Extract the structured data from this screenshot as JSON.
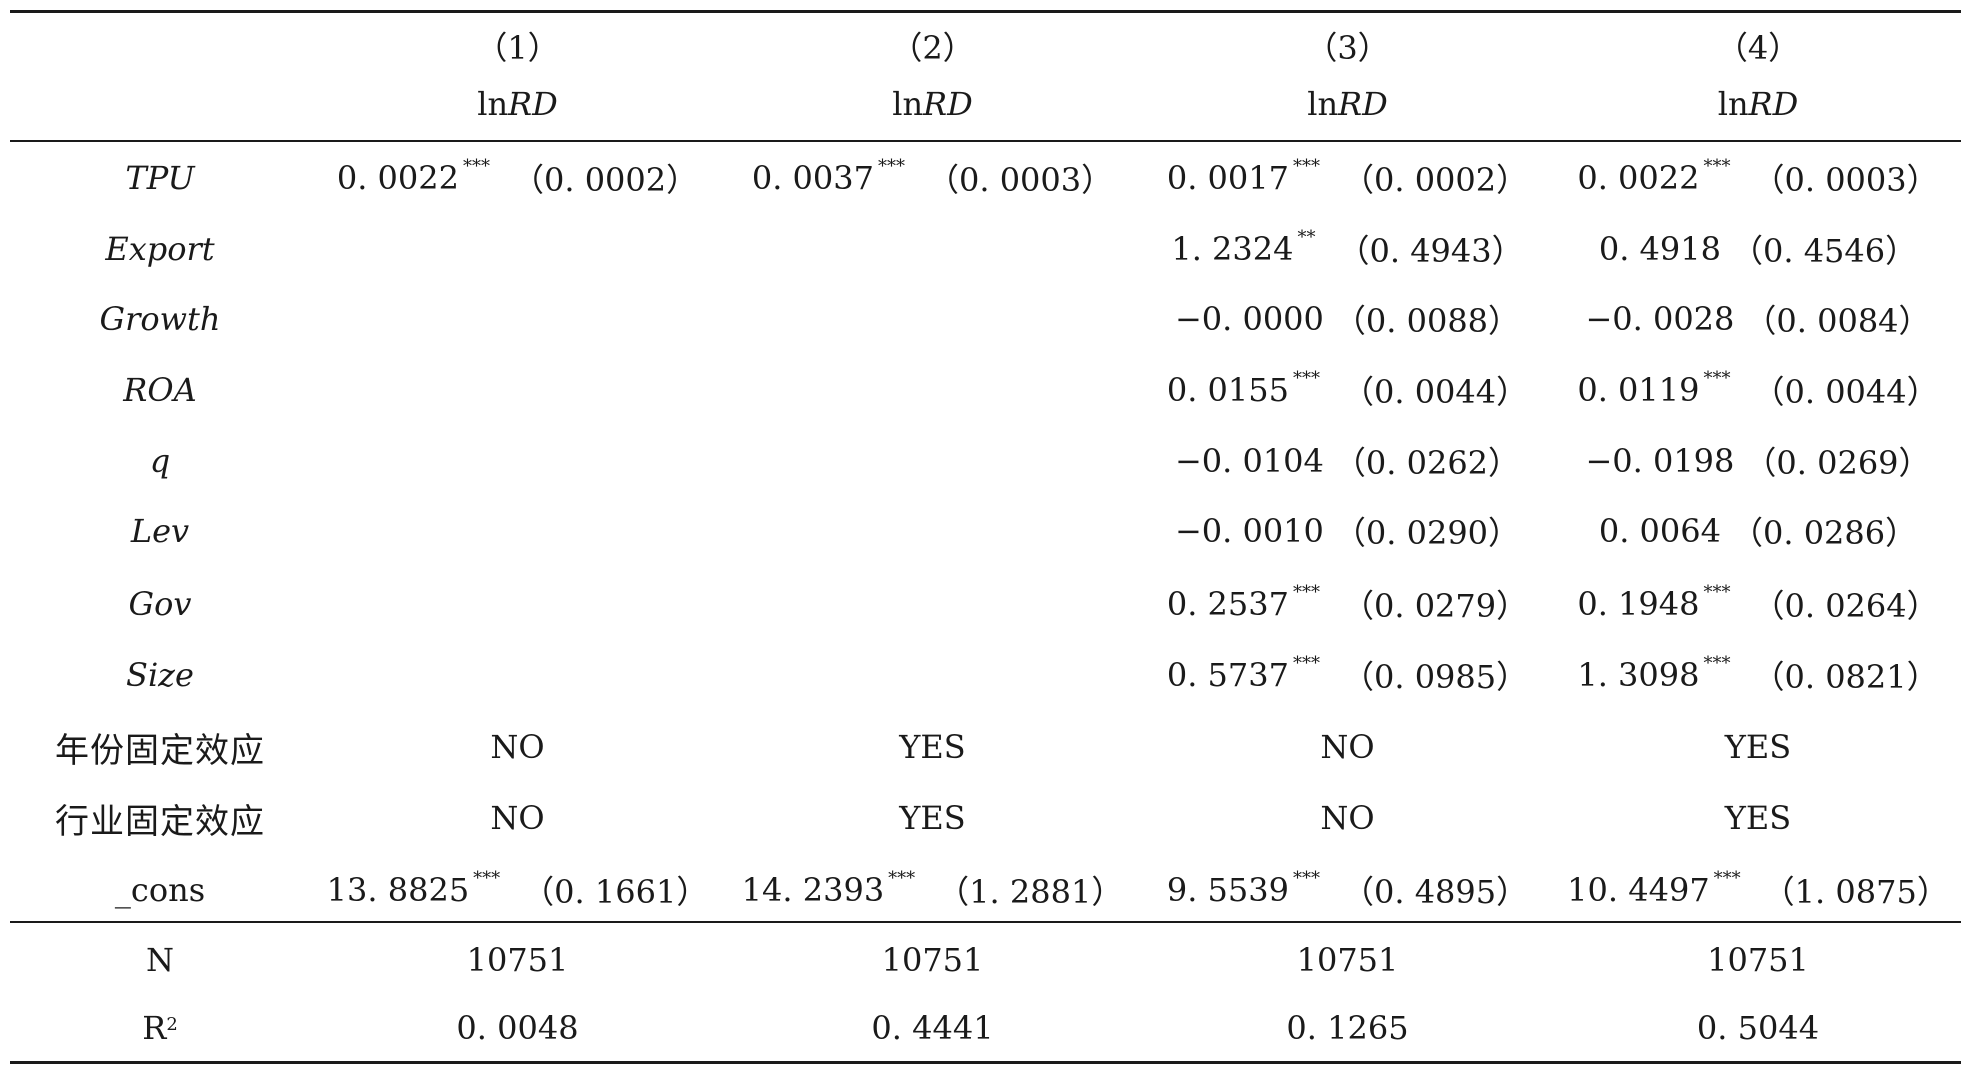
{
  "header": {
    "columns": [
      {
        "num": "（1）",
        "dv_prefix": "ln",
        "dv_var": "RD"
      },
      {
        "num": "（2）",
        "dv_prefix": "ln",
        "dv_var": "RD"
      },
      {
        "num": "（3）",
        "dv_prefix": "ln",
        "dv_var": "RD"
      },
      {
        "num": "（4）",
        "dv_prefix": "ln",
        "dv_var": "RD"
      }
    ]
  },
  "rows": [
    {
      "label": "TPU",
      "cells": [
        {
          "coef": "0. 0022",
          "stars": "***",
          "se": "（0. 0002）"
        },
        {
          "coef": "0. 0037",
          "stars": "***",
          "se": "（0. 0003）"
        },
        {
          "coef": "0. 0017",
          "stars": "***",
          "se": "（0. 0002）"
        },
        {
          "coef": "0. 0022",
          "stars": "***",
          "se": "（0. 0003）"
        }
      ]
    },
    {
      "label": "Export",
      "cells": [
        {
          "coef": "",
          "stars": "",
          "se": ""
        },
        {
          "coef": "",
          "stars": "",
          "se": ""
        },
        {
          "coef": "1. 2324",
          "stars": "**",
          "se": "（0. 4943）"
        },
        {
          "coef": "0. 4918",
          "stars": "",
          "se": "（0. 4546）"
        }
      ]
    },
    {
      "label": "Growth",
      "cells": [
        {
          "coef": "",
          "stars": "",
          "se": ""
        },
        {
          "coef": "",
          "stars": "",
          "se": ""
        },
        {
          "coef": "−0. 0000",
          "stars": "",
          "se": "（0. 0088）"
        },
        {
          "coef": "−0. 0028",
          "stars": "",
          "se": "（0. 0084）"
        }
      ]
    },
    {
      "label": "ROA",
      "cells": [
        {
          "coef": "",
          "stars": "",
          "se": ""
        },
        {
          "coef": "",
          "stars": "",
          "se": ""
        },
        {
          "coef": "0. 0155",
          "stars": "***",
          "se": "（0. 0044）"
        },
        {
          "coef": "0. 0119",
          "stars": "***",
          "se": "（0. 0044）"
        }
      ]
    },
    {
      "label": "q",
      "cells": [
        {
          "coef": "",
          "stars": "",
          "se": ""
        },
        {
          "coef": "",
          "stars": "",
          "se": ""
        },
        {
          "coef": "−0. 0104",
          "stars": "",
          "se": "（0. 0262）"
        },
        {
          "coef": "−0. 0198",
          "stars": "",
          "se": "（0. 0269）"
        }
      ]
    },
    {
      "label": "Lev",
      "cells": [
        {
          "coef": "",
          "stars": "",
          "se": ""
        },
        {
          "coef": "",
          "stars": "",
          "se": ""
        },
        {
          "coef": "−0. 0010",
          "stars": "",
          "se": "（0. 0290）"
        },
        {
          "coef": "0. 0064",
          "stars": "",
          "se": "（0. 0286）"
        }
      ]
    },
    {
      "label": "Gov",
      "cells": [
        {
          "coef": "",
          "stars": "",
          "se": ""
        },
        {
          "coef": "",
          "stars": "",
          "se": ""
        },
        {
          "coef": "0. 2537",
          "stars": "***",
          "se": "（0. 0279）"
        },
        {
          "coef": "0. 1948",
          "stars": "***",
          "se": "（0. 0264）"
        }
      ]
    },
    {
      "label": "Size",
      "cells": [
        {
          "coef": "",
          "stars": "",
          "se": ""
        },
        {
          "coef": "",
          "stars": "",
          "se": ""
        },
        {
          "coef": "0. 5737",
          "stars": "***",
          "se": "（0. 0985）"
        },
        {
          "coef": "1. 3098",
          "stars": "***",
          "se": "（0. 0821）"
        }
      ]
    }
  ],
  "fixed_effects": [
    {
      "label": "年份固定效应",
      "values": [
        "NO",
        "YES",
        "NO",
        "YES"
      ]
    },
    {
      "label": "行业固定效应",
      "values": [
        "NO",
        "YES",
        "NO",
        "YES"
      ]
    }
  ],
  "cons": {
    "label": "_cons",
    "cells": [
      {
        "coef": "13. 8825",
        "stars": "***",
        "se": "（0. 1661）"
      },
      {
        "coef": "14. 2393",
        "stars": "***",
        "se": "（1. 2881）"
      },
      {
        "coef": "9. 5539",
        "stars": "***",
        "se": "（0. 4895）"
      },
      {
        "coef": "10. 4497",
        "stars": "***",
        "se": "（1. 0875）"
      }
    ]
  },
  "stats": [
    {
      "label": "N",
      "values": [
        "10751",
        "10751",
        "10751",
        "10751"
      ]
    },
    {
      "label": "R",
      "label_sup": "2",
      "values": [
        "0. 0048",
        "0. 4441",
        "0. 1265",
        "0. 5044"
      ]
    }
  ]
}
